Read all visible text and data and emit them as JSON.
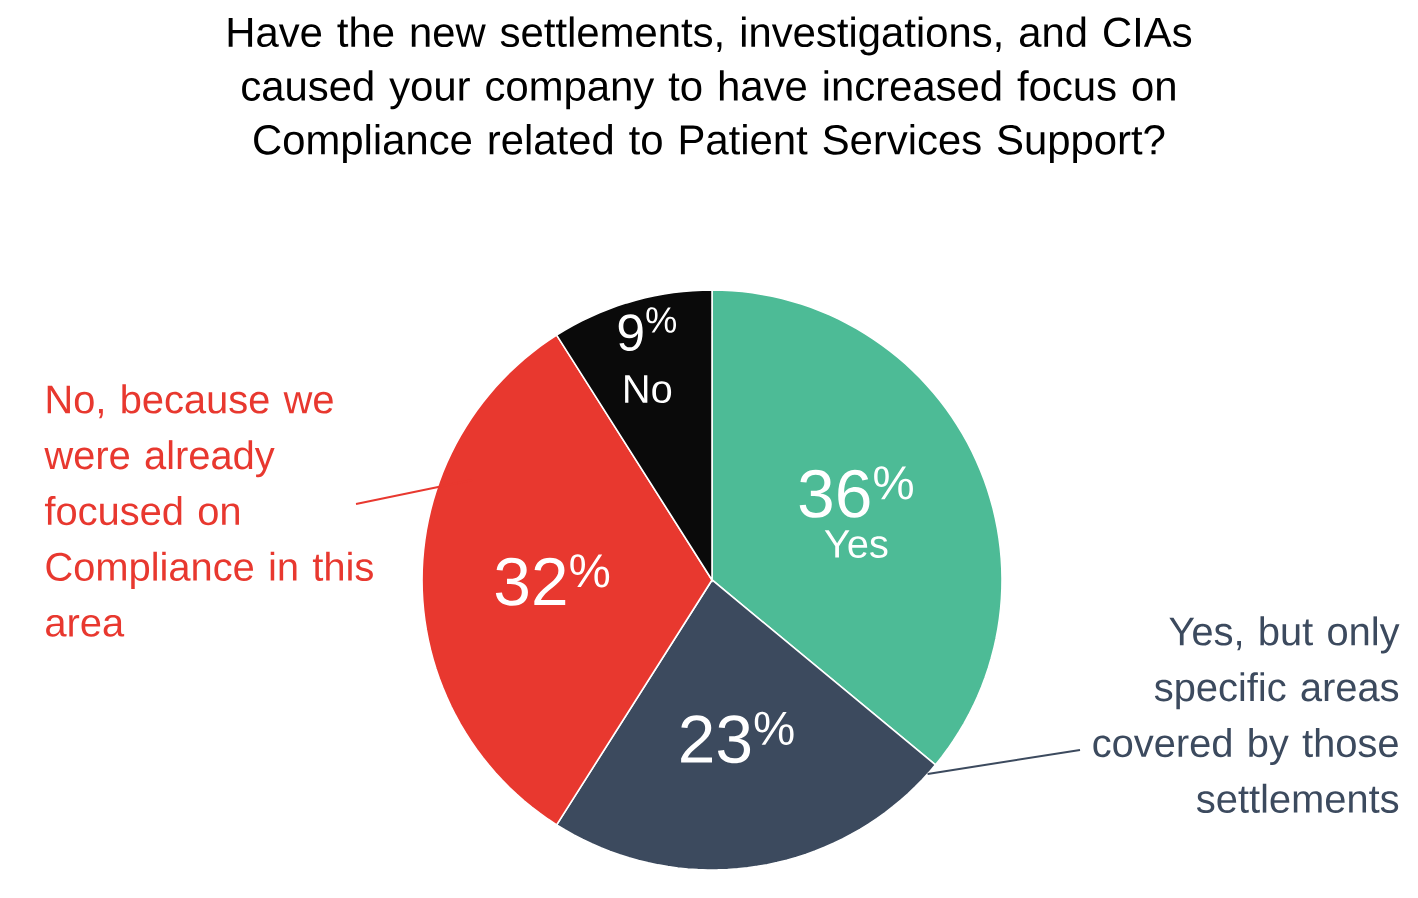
{
  "chart_data": {
    "type": "pie",
    "title": "Have the new settlements, investigations, and CIAs caused your company to have increased focus on Compliance related to Patient Services Support?",
    "categories": [
      "Yes",
      "Yes, but only specific areas covered by those settlements",
      "No, because we were already focused on Compliance in this area",
      "No"
    ],
    "values": [
      36,
      23,
      32,
      9
    ],
    "colors": [
      "#4dbb96",
      "#3c4a5e",
      "#e8382f",
      "#0a0a0a"
    ],
    "value_labels": [
      "36$^{%}$",
      "23$^{%}$",
      "32$^{%}$",
      "9$^{%}$"
    ]
  }
}
